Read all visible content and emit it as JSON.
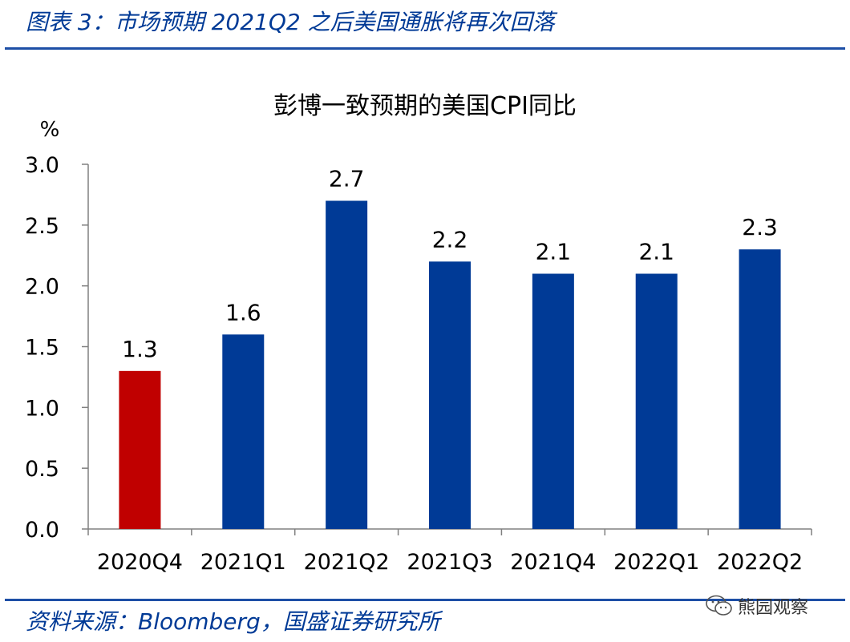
{
  "figure": {
    "header": "图表 3：市场预期 2021Q2 之后美国通胀将再次回落",
    "source": "资料来源：Bloomberg，国盛证券研究所",
    "watermark": "熊园观察",
    "watermark_icon": "wechat-icon"
  },
  "colors": {
    "accent": "#003a96",
    "bar_default": "#003a96",
    "bar_highlight": "#c00000"
  },
  "chart_data": {
    "type": "bar",
    "title": "彭博一致预期的美国CPI同比",
    "ylabel": "%",
    "xlabel": "",
    "ylim": [
      0,
      3.0
    ],
    "yticks": [
      "0.0",
      "0.5",
      "1.0",
      "1.5",
      "2.0",
      "2.5",
      "3.0"
    ],
    "categories": [
      "2020Q4",
      "2021Q1",
      "2021Q2",
      "2021Q3",
      "2021Q4",
      "2022Q1",
      "2022Q2"
    ],
    "values": [
      1.3,
      1.6,
      2.7,
      2.2,
      2.1,
      2.1,
      2.3
    ],
    "data_labels": [
      "1.3",
      "1.6",
      "2.7",
      "2.2",
      "2.1",
      "2.1",
      "2.3"
    ],
    "highlight_index": 0,
    "grid": false,
    "legend": "none"
  }
}
